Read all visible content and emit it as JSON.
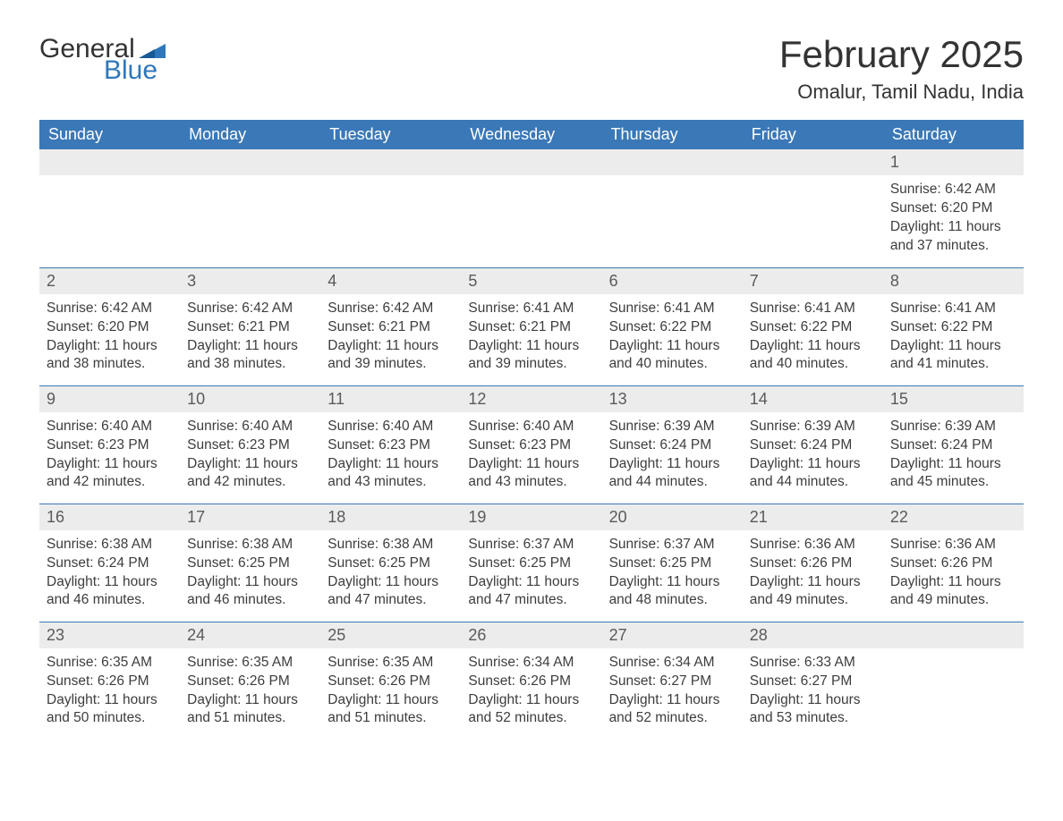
{
  "logo": {
    "text1": "General",
    "text2": "Blue",
    "tri_color": "#2f77bb"
  },
  "title": "February 2025",
  "location": "Omalur, Tamil Nadu, India",
  "colors": {
    "header_bg": "#3a78b7",
    "header_text": "#ffffff",
    "band_bg": "#ececec",
    "row_border": "#3a78b7",
    "body_text": "#3d3d3d",
    "logo_blue": "#2f77bb"
  },
  "daysOfWeek": [
    "Sunday",
    "Monday",
    "Tuesday",
    "Wednesday",
    "Thursday",
    "Friday",
    "Saturday"
  ],
  "weeks": [
    [
      null,
      null,
      null,
      null,
      null,
      null,
      {
        "n": "1",
        "sunrise": "Sunrise: 6:42 AM",
        "sunset": "Sunset: 6:20 PM",
        "day1": "Daylight: 11 hours",
        "day2": "and 37 minutes."
      }
    ],
    [
      {
        "n": "2",
        "sunrise": "Sunrise: 6:42 AM",
        "sunset": "Sunset: 6:20 PM",
        "day1": "Daylight: 11 hours",
        "day2": "and 38 minutes."
      },
      {
        "n": "3",
        "sunrise": "Sunrise: 6:42 AM",
        "sunset": "Sunset: 6:21 PM",
        "day1": "Daylight: 11 hours",
        "day2": "and 38 minutes."
      },
      {
        "n": "4",
        "sunrise": "Sunrise: 6:42 AM",
        "sunset": "Sunset: 6:21 PM",
        "day1": "Daylight: 11 hours",
        "day2": "and 39 minutes."
      },
      {
        "n": "5",
        "sunrise": "Sunrise: 6:41 AM",
        "sunset": "Sunset: 6:21 PM",
        "day1": "Daylight: 11 hours",
        "day2": "and 39 minutes."
      },
      {
        "n": "6",
        "sunrise": "Sunrise: 6:41 AM",
        "sunset": "Sunset: 6:22 PM",
        "day1": "Daylight: 11 hours",
        "day2": "and 40 minutes."
      },
      {
        "n": "7",
        "sunrise": "Sunrise: 6:41 AM",
        "sunset": "Sunset: 6:22 PM",
        "day1": "Daylight: 11 hours",
        "day2": "and 40 minutes."
      },
      {
        "n": "8",
        "sunrise": "Sunrise: 6:41 AM",
        "sunset": "Sunset: 6:22 PM",
        "day1": "Daylight: 11 hours",
        "day2": "and 41 minutes."
      }
    ],
    [
      {
        "n": "9",
        "sunrise": "Sunrise: 6:40 AM",
        "sunset": "Sunset: 6:23 PM",
        "day1": "Daylight: 11 hours",
        "day2": "and 42 minutes."
      },
      {
        "n": "10",
        "sunrise": "Sunrise: 6:40 AM",
        "sunset": "Sunset: 6:23 PM",
        "day1": "Daylight: 11 hours",
        "day2": "and 42 minutes."
      },
      {
        "n": "11",
        "sunrise": "Sunrise: 6:40 AM",
        "sunset": "Sunset: 6:23 PM",
        "day1": "Daylight: 11 hours",
        "day2": "and 43 minutes."
      },
      {
        "n": "12",
        "sunrise": "Sunrise: 6:40 AM",
        "sunset": "Sunset: 6:23 PM",
        "day1": "Daylight: 11 hours",
        "day2": "and 43 minutes."
      },
      {
        "n": "13",
        "sunrise": "Sunrise: 6:39 AM",
        "sunset": "Sunset: 6:24 PM",
        "day1": "Daylight: 11 hours",
        "day2": "and 44 minutes."
      },
      {
        "n": "14",
        "sunrise": "Sunrise: 6:39 AM",
        "sunset": "Sunset: 6:24 PM",
        "day1": "Daylight: 11 hours",
        "day2": "and 44 minutes."
      },
      {
        "n": "15",
        "sunrise": "Sunrise: 6:39 AM",
        "sunset": "Sunset: 6:24 PM",
        "day1": "Daylight: 11 hours",
        "day2": "and 45 minutes."
      }
    ],
    [
      {
        "n": "16",
        "sunrise": "Sunrise: 6:38 AM",
        "sunset": "Sunset: 6:24 PM",
        "day1": "Daylight: 11 hours",
        "day2": "and 46 minutes."
      },
      {
        "n": "17",
        "sunrise": "Sunrise: 6:38 AM",
        "sunset": "Sunset: 6:25 PM",
        "day1": "Daylight: 11 hours",
        "day2": "and 46 minutes."
      },
      {
        "n": "18",
        "sunrise": "Sunrise: 6:38 AM",
        "sunset": "Sunset: 6:25 PM",
        "day1": "Daylight: 11 hours",
        "day2": "and 47 minutes."
      },
      {
        "n": "19",
        "sunrise": "Sunrise: 6:37 AM",
        "sunset": "Sunset: 6:25 PM",
        "day1": "Daylight: 11 hours",
        "day2": "and 47 minutes."
      },
      {
        "n": "20",
        "sunrise": "Sunrise: 6:37 AM",
        "sunset": "Sunset: 6:25 PM",
        "day1": "Daylight: 11 hours",
        "day2": "and 48 minutes."
      },
      {
        "n": "21",
        "sunrise": "Sunrise: 6:36 AM",
        "sunset": "Sunset: 6:26 PM",
        "day1": "Daylight: 11 hours",
        "day2": "and 49 minutes."
      },
      {
        "n": "22",
        "sunrise": "Sunrise: 6:36 AM",
        "sunset": "Sunset: 6:26 PM",
        "day1": "Daylight: 11 hours",
        "day2": "and 49 minutes."
      }
    ],
    [
      {
        "n": "23",
        "sunrise": "Sunrise: 6:35 AM",
        "sunset": "Sunset: 6:26 PM",
        "day1": "Daylight: 11 hours",
        "day2": "and 50 minutes."
      },
      {
        "n": "24",
        "sunrise": "Sunrise: 6:35 AM",
        "sunset": "Sunset: 6:26 PM",
        "day1": "Daylight: 11 hours",
        "day2": "and 51 minutes."
      },
      {
        "n": "25",
        "sunrise": "Sunrise: 6:35 AM",
        "sunset": "Sunset: 6:26 PM",
        "day1": "Daylight: 11 hours",
        "day2": "and 51 minutes."
      },
      {
        "n": "26",
        "sunrise": "Sunrise: 6:34 AM",
        "sunset": "Sunset: 6:26 PM",
        "day1": "Daylight: 11 hours",
        "day2": "and 52 minutes."
      },
      {
        "n": "27",
        "sunrise": "Sunrise: 6:34 AM",
        "sunset": "Sunset: 6:27 PM",
        "day1": "Daylight: 11 hours",
        "day2": "and 52 minutes."
      },
      {
        "n": "28",
        "sunrise": "Sunrise: 6:33 AM",
        "sunset": "Sunset: 6:27 PM",
        "day1": "Daylight: 11 hours",
        "day2": "and 53 minutes."
      },
      null
    ]
  ]
}
